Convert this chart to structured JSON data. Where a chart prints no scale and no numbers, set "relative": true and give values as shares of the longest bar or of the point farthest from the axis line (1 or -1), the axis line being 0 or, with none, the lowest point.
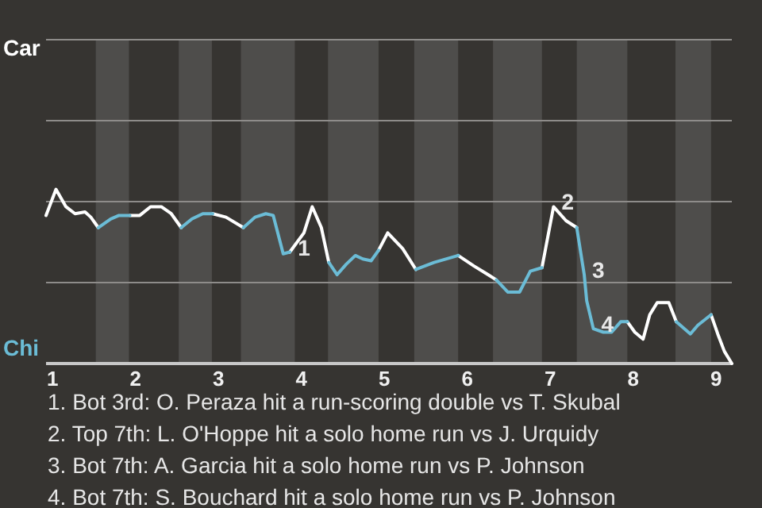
{
  "chart_data": {
    "type": "line",
    "relative": true,
    "xlim": [
      0.92,
      9.19
    ],
    "xticks": [
      1,
      2,
      3,
      4,
      5,
      6,
      7,
      8,
      9
    ],
    "marker": "none",
    "line_style": "solid",
    "ref_lines": [
      {
        "axis": "y",
        "value": 0.465,
        "color": "#8e8c8a"
      },
      {
        "axis": "y",
        "value": 0.929,
        "color": "#8e8c8a"
      },
      {
        "axis": "y",
        "value": 1.394,
        "color": "#8e8c8a"
      },
      {
        "axis": "y",
        "value": 1.859,
        "color": "#8e8c8a"
      }
    ],
    "x": [
      0.92,
      1.04,
      1.16,
      1.27,
      1.39,
      1.46,
      1.55,
      1.7,
      1.8,
      1.93,
      2.05,
      2.18,
      2.31,
      2.43,
      2.55,
      2.68,
      2.81,
      2.93,
      3.09,
      3.3,
      3.44,
      3.57,
      3.66,
      3.78,
      3.86,
      4.03,
      4.13,
      4.24,
      4.33,
      4.43,
      4.54,
      4.65,
      4.74,
      4.84,
      4.93,
      5.04,
      5.22,
      5.38,
      5.6,
      5.89,
      6.08,
      6.25,
      6.35,
      6.49,
      6.63,
      6.76,
      6.9,
      7.04,
      7.19,
      7.32,
      7.41,
      7.44,
      7.52,
      7.64,
      7.74,
      7.85,
      7.93,
      8.02,
      8.12,
      8.2,
      8.29,
      8.43,
      8.52,
      8.69,
      8.78,
      8.94,
      9.02,
      9.1,
      9.19
    ],
    "series": [
      {
        "name": "Car",
        "color": "#ffffff",
        "values": [
          0.85,
          1,
          0.9,
          0.86,
          0.87,
          0.84,
          0.78,
          null,
          null,
          0.85,
          0.85,
          0.9,
          0.9,
          0.86,
          0.78,
          null,
          null,
          0.86,
          0.84,
          0.78,
          null,
          null,
          null,
          null,
          0.64,
          0.75,
          0.9,
          0.78,
          0.58,
          null,
          null,
          null,
          null,
          null,
          0.65,
          0.75,
          0.66,
          0.54,
          null,
          0.62,
          0.56,
          0.51,
          0.48,
          null,
          null,
          null,
          0.55,
          0.9,
          0.82,
          0.78,
          null,
          null,
          null,
          null,
          null,
          null,
          0.24,
          0.18,
          0.14,
          0.28,
          0.35,
          0.35,
          0.24,
          null,
          null,
          0.28,
          0.17,
          0.07,
          0
        ]
      },
      {
        "name": "Chi",
        "color": "#6bbcd6",
        "values": [
          null,
          null,
          null,
          null,
          null,
          null,
          0.78,
          0.83,
          0.85,
          0.85,
          null,
          null,
          null,
          null,
          0.78,
          0.83,
          0.86,
          0.86,
          null,
          0.78,
          0.84,
          0.86,
          0.85,
          0.63,
          0.64,
          null,
          null,
          null,
          0.58,
          0.51,
          0.57,
          0.62,
          0.6,
          0.59,
          0.65,
          null,
          null,
          0.54,
          0.58,
          0.62,
          null,
          null,
          0.48,
          0.41,
          0.41,
          0.53,
          0.55,
          null,
          null,
          0.78,
          0.51,
          0.36,
          0.2,
          0.18,
          0.18,
          0.24,
          0.24,
          null,
          null,
          null,
          null,
          null,
          0.24,
          0.17,
          0.22,
          0.28,
          null,
          null,
          null
        ]
      }
    ],
    "bands": [
      {
        "axis": "x",
        "from": 1.52,
        "to": 1.92,
        "color": "#4e4d4b"
      },
      {
        "axis": "x",
        "from": 2.52,
        "to": 2.92,
        "color": "#4e4d4b"
      },
      {
        "axis": "x",
        "from": 3.27,
        "to": 3.92,
        "color": "#4e4d4b"
      },
      {
        "axis": "x",
        "from": 4.32,
        "to": 4.93,
        "color": "#4e4d4b"
      },
      {
        "axis": "x",
        "from": 5.36,
        "to": 5.89,
        "color": "#4e4d4b"
      },
      {
        "axis": "x",
        "from": 6.31,
        "to": 6.9,
        "color": "#4e4d4b"
      },
      {
        "axis": "x",
        "from": 7.32,
        "to": 7.93,
        "color": "#4e4d4b"
      },
      {
        "axis": "x",
        "from": 8.51,
        "to": 8.94,
        "color": "#4e4d4b"
      }
    ],
    "annotations": [
      {
        "text": "1",
        "x": 3.86,
        "y": 0.64
      },
      {
        "text": "2",
        "x": 7.04,
        "y": 0.9
      },
      {
        "text": "3",
        "x": 7.41,
        "y": 0.51
      },
      {
        "text": "4",
        "x": 7.52,
        "y": 0.2
      },
      "1. Bot 3rd: O. Peraza hit a run-scoring double vs T. Skubal",
      "2. Top 7th: L. O'Hoppe hit a solo home run vs J. Urquidy",
      "3. Bot 7th: A. Garcia hit a solo home run vs P. Johnson",
      "4. Bot 7th: S. Bouchard hit a solo home run vs P. Johnson"
    ]
  }
}
